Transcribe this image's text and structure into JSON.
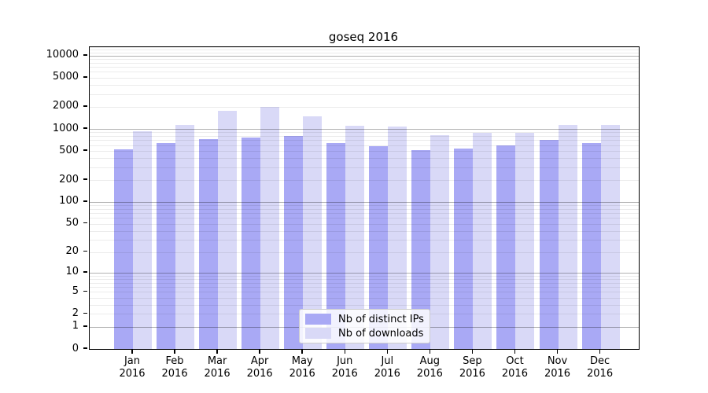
{
  "chart_data": {
    "type": "bar",
    "title": "goseq 2016",
    "categories": [
      "Jan",
      "Feb",
      "Mar",
      "Apr",
      "May",
      "Jun",
      "Jul",
      "Aug",
      "Sep",
      "Oct",
      "Nov",
      "Dec"
    ],
    "year": "2016",
    "series": [
      {
        "name": "Nb of distinct IPs",
        "color": "#a9a9f5",
        "values": [
          530,
          645,
          730,
          765,
          810,
          645,
          580,
          515,
          540,
          590,
          715,
          650
        ]
      },
      {
        "name": "Nb of downloads",
        "color": "#d9d9f7",
        "values": [
          930,
          1120,
          1770,
          1980,
          1500,
          1100,
          1080,
          830,
          880,
          890,
          1140,
          1125
        ]
      }
    ],
    "y_axis": {
      "scale": "log10(1+x)",
      "ticks": [
        0,
        1,
        2,
        5,
        10,
        20,
        50,
        100,
        200,
        500,
        1000,
        2000,
        5000,
        10000
      ],
      "ylim": [
        0,
        13000
      ]
    },
    "xlabel": "",
    "ylabel": "",
    "grid": "on",
    "legend": {
      "position": "lower-center",
      "entries": [
        "Nb of distinct IPs",
        "Nb of downloads"
      ]
    }
  }
}
